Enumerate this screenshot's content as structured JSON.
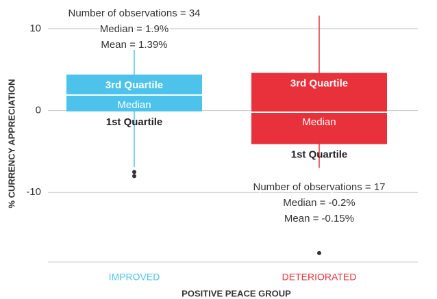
{
  "chart_data": {
    "type": "box",
    "y_label": "% CURRENCY APPRECIATION",
    "x_label": "POSITIVE PEACE GROUP",
    "ylim": [
      -18.5,
      12
    ],
    "yticks": [
      -10,
      0,
      10
    ],
    "grid": true,
    "categories": [
      "IMPROVED",
      "DETERIORATED"
    ],
    "boxes": [
      {
        "color": "#4dc3ec",
        "whisker_low": -6.9,
        "q1": -0.1,
        "median": 1.9,
        "q3": 4.4,
        "whisker_high": 7.4,
        "outliers": [
          -7.5,
          -8.0
        ],
        "labels": {
          "q3": "3rd Quartile",
          "median": "Median",
          "q1": "1st Quartile"
        },
        "annotation": [
          "Number of observations = 34",
          "Median = 1.9%",
          "Mean = 1.39%"
        ]
      },
      {
        "color": "#e8313a",
        "whisker_low": -7.0,
        "q1": -4.1,
        "median": -0.2,
        "q3": 4.6,
        "whisker_high": 11.6,
        "outliers": [
          -17.4
        ],
        "labels": {
          "q3": "3rd Quartile",
          "median": "Median",
          "q1": "1st Quartile"
        },
        "annotation": [
          "Number of observations = 17",
          "Median = -0.2%",
          "Mean = -0.15%"
        ]
      }
    ]
  }
}
